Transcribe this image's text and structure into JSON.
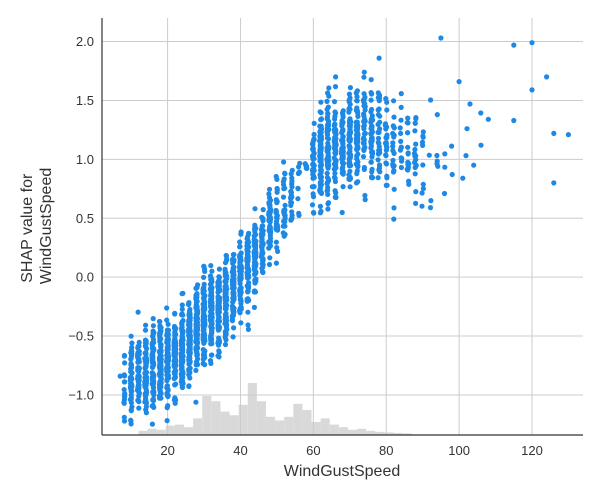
{
  "chart_data": {
    "type": "scatter",
    "xlabel": "WindGustSpeed",
    "ylabel_lines": [
      "SHAP value for",
      "WindGustSpeed"
    ],
    "xlim": [
      2,
      134
    ],
    "ylim": [
      -1.34,
      2.2
    ],
    "x_ticks": [
      20,
      40,
      60,
      80,
      100,
      120
    ],
    "y_ticks": [
      -1.0,
      -0.5,
      0.0,
      0.5,
      1.0,
      1.5,
      2.0
    ],
    "x_tick_labels": [
      "20",
      "40",
      "60",
      "80",
      "100",
      "120"
    ],
    "y_tick_labels": [
      "−1.0",
      "−0.5",
      "0.0",
      "0.5",
      "1.0",
      "1.5",
      "2.0"
    ],
    "grid": true,
    "point_color": "#1e88e5",
    "histogram_color": "#d9d9d9",
    "histogram": {
      "bin_edges": [
        7,
        9.5,
        12,
        14.5,
        17,
        19.5,
        22,
        24.5,
        27,
        29.5,
        32,
        34.5,
        37,
        39.5,
        42,
        44.5,
        47,
        49.5,
        52,
        54.5,
        57,
        59.5,
        62,
        64.5,
        67,
        69.5,
        72,
        74.5,
        77,
        79.5,
        82,
        84.5,
        87
      ],
      "counts": [
        0,
        0,
        0.08,
        0.12,
        0.1,
        0.18,
        0.2,
        0.15,
        0.32,
        0.75,
        0.65,
        0.45,
        0.38,
        0.58,
        1.0,
        0.65,
        0.35,
        0.28,
        0.35,
        0.6,
        0.48,
        0.25,
        0.32,
        0.2,
        0.15,
        0.1,
        0.12,
        0.08,
        0.06,
        0.05,
        0.04,
        0.03
      ]
    },
    "trend": {
      "x": [
        7,
        15,
        20,
        25,
        30,
        35,
        40,
        45,
        48,
        52,
        55,
        60,
        65,
        70,
        75,
        80,
        85,
        90,
        100,
        107
      ],
      "y": [
        -0.92,
        -0.82,
        -0.72,
        -0.58,
        -0.38,
        -0.2,
        -0.02,
        0.18,
        0.45,
        0.6,
        0.7,
        0.95,
        1.08,
        1.2,
        1.22,
        1.1,
        1.05,
        1.02,
        1.0,
        1.0
      ]
    },
    "outliers": [
      {
        "x": 95,
        "y": 2.03
      },
      {
        "x": 115,
        "y": 1.97
      },
      {
        "x": 120,
        "y": 1.99
      },
      {
        "x": 124,
        "y": 1.7
      },
      {
        "x": 120,
        "y": 1.59
      },
      {
        "x": 115,
        "y": 1.33
      },
      {
        "x": 126,
        "y": 1.22
      },
      {
        "x": 130,
        "y": 1.21
      },
      {
        "x": 126,
        "y": 0.8
      },
      {
        "x": 108,
        "y": 1.34
      },
      {
        "x": 106,
        "y": 1.12
      },
      {
        "x": 104,
        "y": 0.95
      },
      {
        "x": 96,
        "y": 0.71
      },
      {
        "x": 101,
        "y": 0.84
      },
      {
        "x": 103,
        "y": 1.47
      },
      {
        "x": 100,
        "y": 1.66
      },
      {
        "x": 7,
        "y": -0.84
      }
    ]
  }
}
